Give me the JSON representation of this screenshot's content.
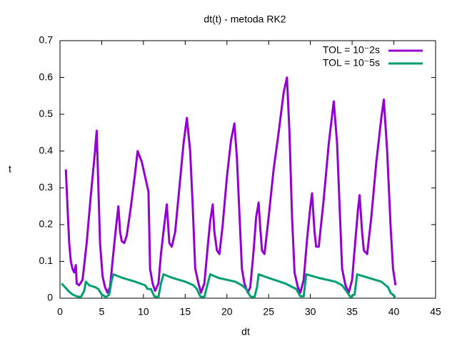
{
  "chart_data": {
    "type": "line",
    "title": "dt(t)  -  metoda  RK2",
    "x_label": "dt",
    "y_label": "t",
    "xlim": [
      0,
      45
    ],
    "xticks": [
      0,
      5,
      10,
      15,
      20,
      25,
      30,
      35,
      40,
      45
    ],
    "ylim": [
      0,
      0.7
    ],
    "yticks": [
      0,
      0.1,
      0.2,
      0.3,
      0.4,
      0.5,
      0.6,
      0.7
    ],
    "legend": "top-right",
    "series": [
      {
        "name": "TOL = 10⁻2s",
        "color": "#9400d3",
        "x": [
          0.7,
          0.9,
          1.1,
          1.3,
          1.5,
          1.7,
          1.9,
          2.0,
          2.3,
          2.7,
          3.2,
          3.7,
          4.2,
          4.4,
          4.6,
          4.8,
          5.1,
          5.4,
          5.7,
          6.0,
          6.3,
          6.7,
          7.0,
          7.2,
          7.4,
          7.7,
          8.0,
          8.5,
          9.0,
          9.3,
          9.8,
          10.3,
          10.6,
          10.8,
          11.1,
          11.4,
          11.8,
          12.1,
          12.5,
          12.8,
          13.1,
          13.4,
          13.8,
          14.3,
          14.8,
          15.2,
          15.6,
          15.9,
          16.2,
          16.6,
          16.9,
          17.3,
          17.7,
          18.0,
          18.3,
          18.5,
          18.8,
          19.1,
          19.5,
          20.0,
          20.5,
          20.9,
          21.2,
          21.5,
          21.8,
          22.1,
          22.5,
          22.8,
          23.2,
          23.5,
          23.8,
          24.0,
          24.2,
          24.5,
          25.0,
          25.6,
          26.2,
          26.8,
          27.2,
          27.5,
          27.8,
          28.1,
          28.5,
          28.8,
          29.2,
          29.6,
          30.0,
          30.2,
          30.5,
          30.7,
          31.0,
          31.6,
          32.2,
          32.8,
          33.2,
          33.5,
          33.8,
          34.2,
          34.6,
          35.0,
          35.4,
          35.7,
          35.9,
          36.2,
          36.4,
          36.8,
          37.3,
          37.9,
          38.5,
          38.8,
          39.2,
          39.6,
          39.9,
          40.2
        ],
        "values": [
          0.35,
          0.25,
          0.15,
          0.1,
          0.08,
          0.07,
          0.09,
          0.04,
          0.035,
          0.05,
          0.15,
          0.28,
          0.4,
          0.455,
          0.3,
          0.15,
          0.06,
          0.03,
          0.015,
          0.03,
          0.1,
          0.19,
          0.25,
          0.18,
          0.155,
          0.15,
          0.17,
          0.25,
          0.34,
          0.4,
          0.37,
          0.32,
          0.29,
          0.08,
          0.04,
          0.02,
          0.04,
          0.12,
          0.2,
          0.255,
          0.15,
          0.14,
          0.18,
          0.3,
          0.42,
          0.49,
          0.4,
          0.25,
          0.08,
          0.04,
          0.015,
          0.04,
          0.14,
          0.21,
          0.255,
          0.18,
          0.13,
          0.12,
          0.2,
          0.33,
          0.43,
          0.475,
          0.38,
          0.23,
          0.08,
          0.04,
          0.015,
          0.03,
          0.13,
          0.22,
          0.26,
          0.19,
          0.13,
          0.12,
          0.22,
          0.35,
          0.45,
          0.56,
          0.6,
          0.45,
          0.22,
          0.07,
          0.03,
          0.015,
          0.05,
          0.16,
          0.25,
          0.285,
          0.18,
          0.14,
          0.14,
          0.27,
          0.42,
          0.535,
          0.42,
          0.25,
          0.08,
          0.035,
          0.015,
          0.05,
          0.16,
          0.24,
          0.28,
          0.18,
          0.13,
          0.12,
          0.22,
          0.37,
          0.49,
          0.54,
          0.4,
          0.2,
          0.08,
          0.035
        ]
      },
      {
        "name": "TOL = 10⁻5s",
        "color": "#009e73",
        "x": [
          0.2,
          0.6,
          1.0,
          1.5,
          2.0,
          2.5,
          2.9,
          3.1,
          3.5,
          4.2,
          4.6,
          5.0,
          5.5,
          5.9,
          6.2,
          6.4,
          7.5,
          9,
          10.2,
          10.5,
          10.9,
          11.3,
          11.8,
          12.1,
          12.4,
          13.5,
          15,
          16,
          16.4,
          16.8,
          17.3,
          17.7,
          18.0,
          19,
          21,
          21.8,
          22.3,
          22.8,
          23.3,
          23.6,
          23.8,
          25,
          27,
          28.3,
          28.8,
          29.2,
          29.5,
          31,
          33,
          33.8,
          34.3,
          34.8,
          35.3,
          35.6,
          37,
          38.5,
          39.3,
          39.6,
          40.2
        ],
        "values": [
          0.04,
          0.03,
          0.02,
          0.01,
          0.005,
          0.003,
          0.02,
          0.045,
          0.035,
          0.03,
          0.025,
          0.01,
          0.003,
          0.01,
          0.05,
          0.065,
          0.055,
          0.045,
          0.035,
          0.025,
          0.025,
          0.005,
          0.003,
          0.04,
          0.065,
          0.055,
          0.045,
          0.035,
          0.025,
          0.005,
          0.003,
          0.04,
          0.065,
          0.055,
          0.045,
          0.035,
          0.025,
          0.005,
          0.003,
          0.03,
          0.065,
          0.055,
          0.04,
          0.025,
          0.005,
          0.005,
          0.065,
          0.055,
          0.045,
          0.035,
          0.02,
          0.003,
          0.01,
          0.065,
          0.055,
          0.045,
          0.03,
          0.015,
          0.003
        ]
      }
    ]
  }
}
